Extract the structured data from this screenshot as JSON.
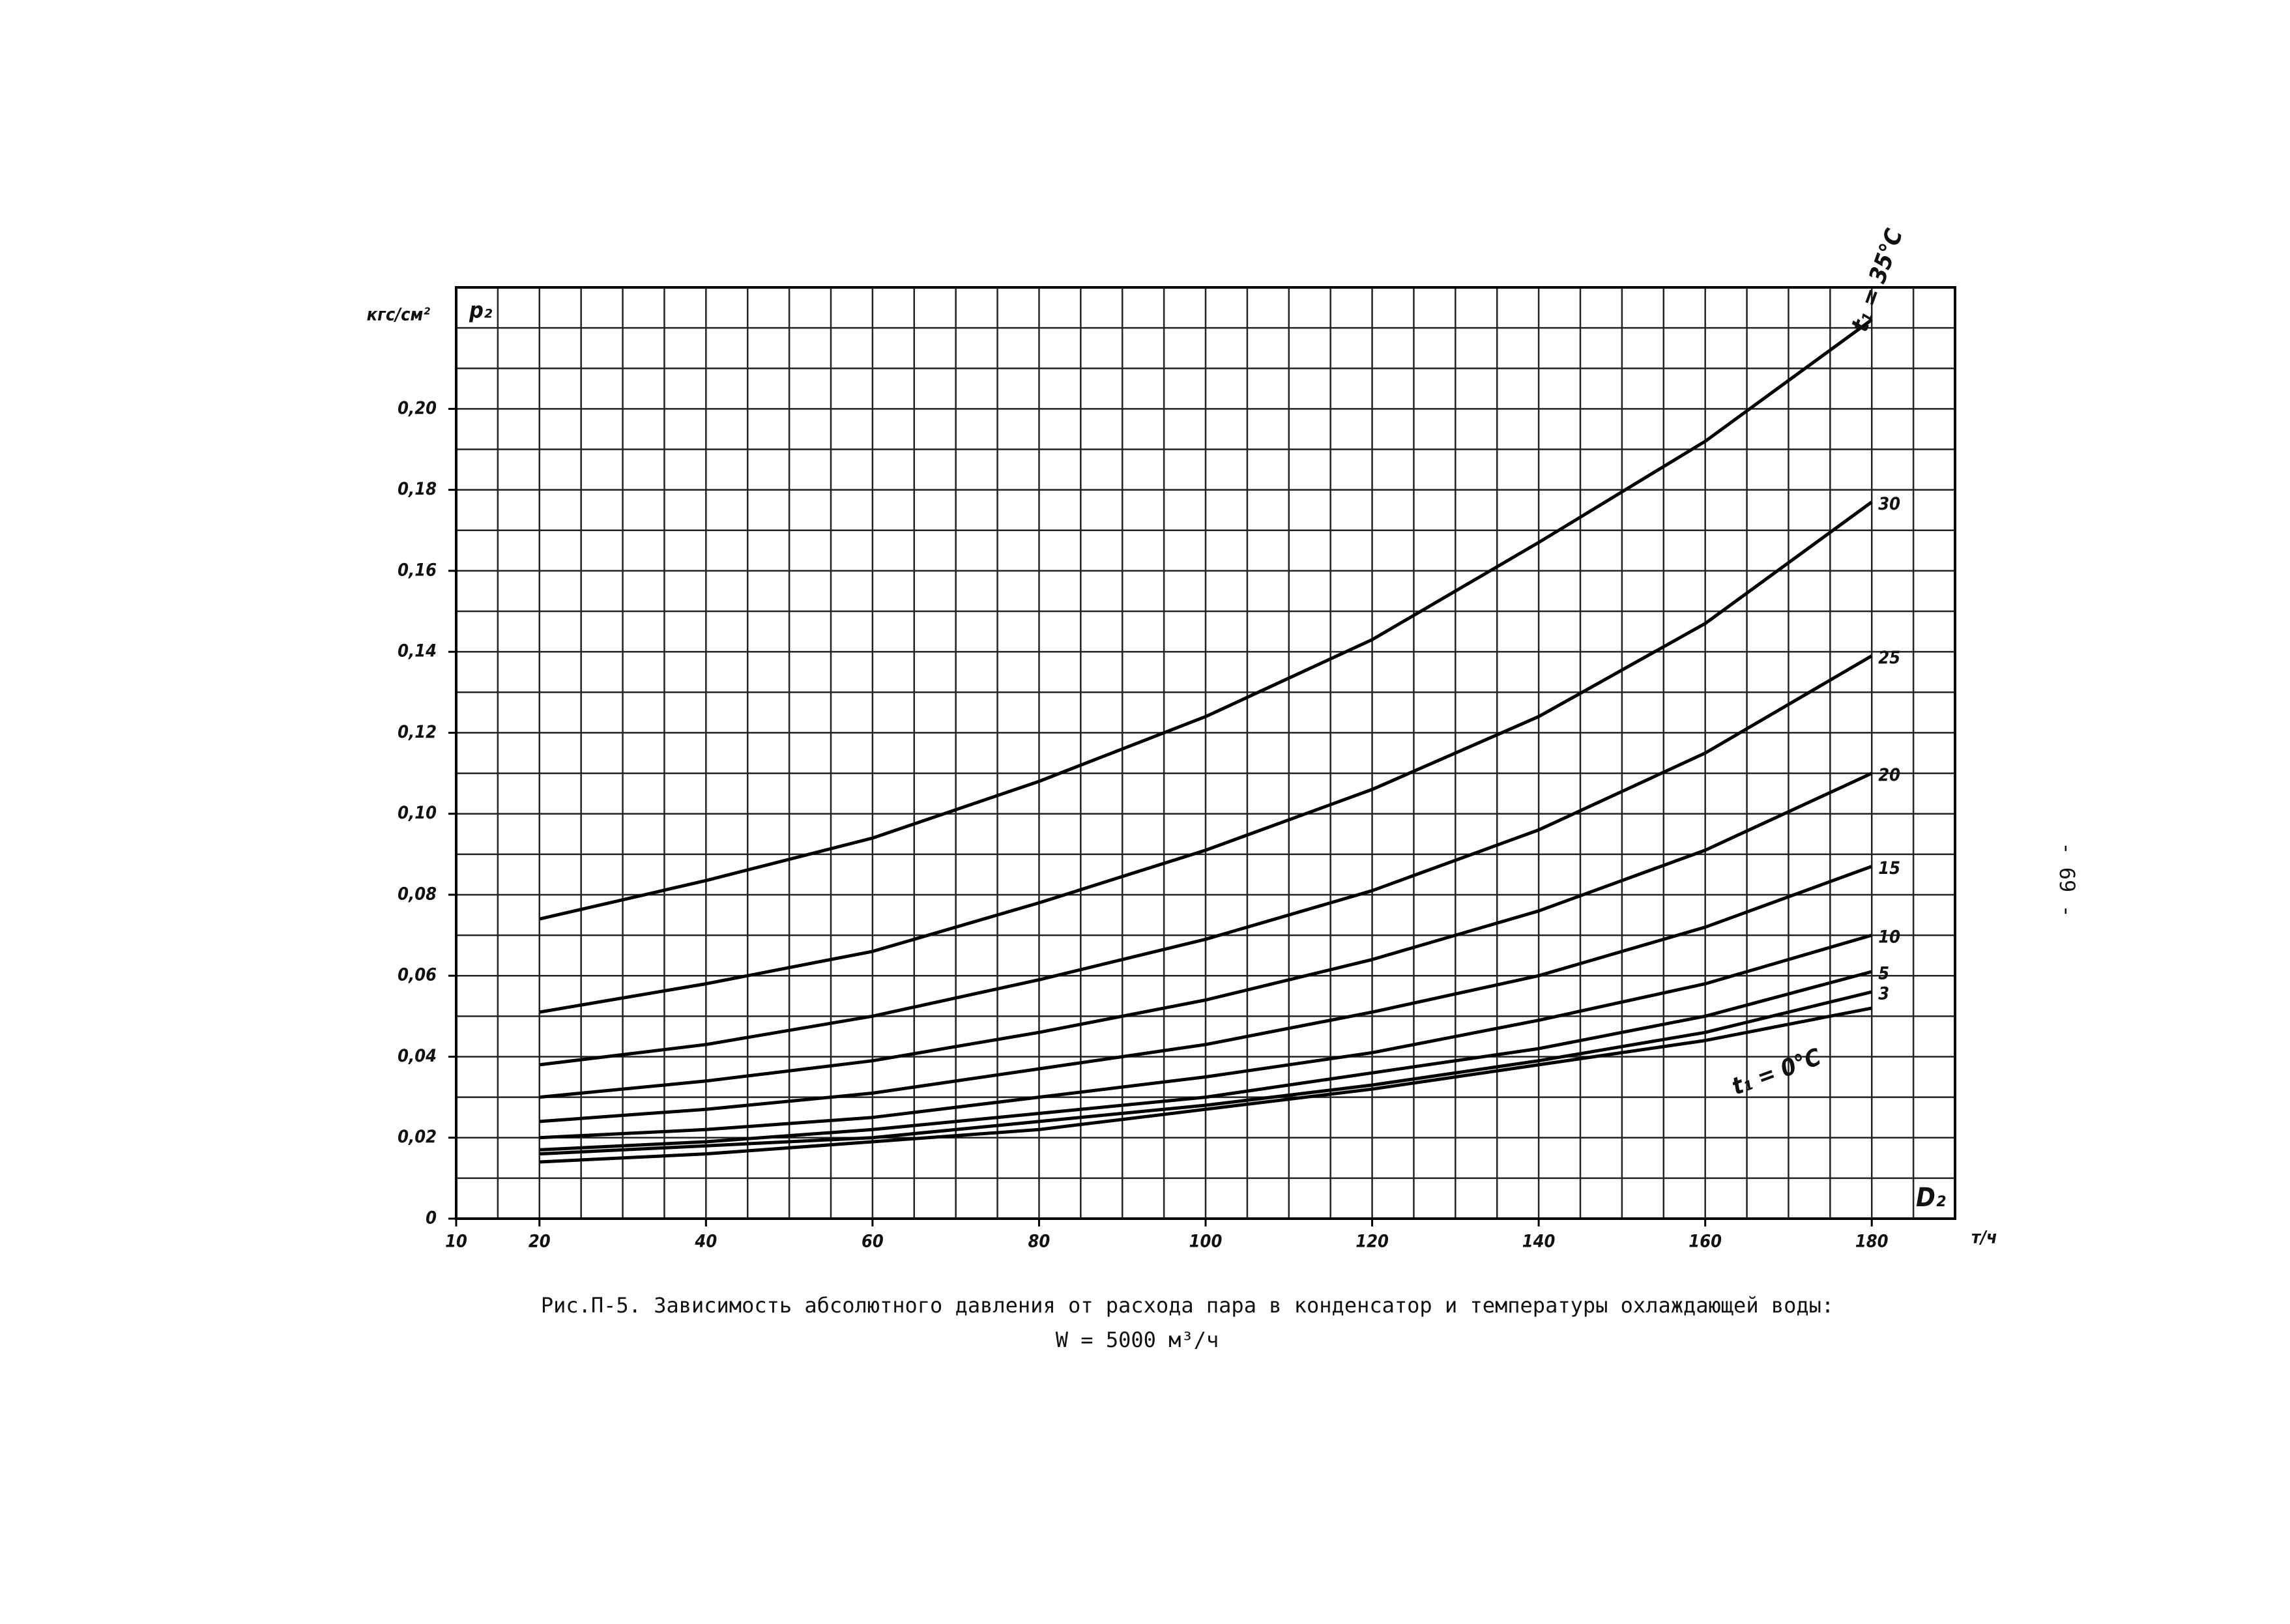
{
  "page_number": "- 69 -",
  "chart_data": {
    "type": "line",
    "title": "Рис.П-5. Зависимость абсолютного давления от расхода пара в конденсатор и температуры охлаждающей воды:",
    "subtitle": "W = 5000 м³/ч",
    "y_unit": "кгс/см²",
    "y_label": "p₂",
    "x_label": "D₂",
    "x_unit": "т/ч",
    "xlim": [
      10,
      190
    ],
    "ylim": [
      0,
      0.23
    ],
    "xticks": [
      10,
      20,
      40,
      60,
      80,
      100,
      120,
      140,
      160,
      180
    ],
    "yticks": [
      0,
      {
        "value": 0.02,
        "label": "0,02"
      },
      {
        "value": 0.04,
        "label": "0,04"
      },
      {
        "value": 0.06,
        "label": "0,06"
      },
      {
        "value": 0.08,
        "label": "0,08"
      },
      {
        "value": 0.1,
        "label": "0,10"
      },
      {
        "value": 0.12,
        "label": "0,12"
      },
      {
        "value": 0.14,
        "label": "0,14"
      },
      {
        "value": 0.16,
        "label": "0,16"
      },
      {
        "value": 0.18,
        "label": "0,18"
      },
      {
        "value": 0.2,
        "label": "0,20"
      }
    ],
    "grid": true,
    "xgrid_step": 5,
    "ygrid_step": 0.01,
    "x": [
      20,
      40,
      60,
      80,
      100,
      120,
      140,
      160,
      180
    ],
    "series": [
      {
        "name": "t₁ = 35°C",
        "color": "#000000",
        "values": [
          0.074,
          0.0835,
          0.094,
          0.108,
          0.124,
          0.143,
          0.167,
          0.192,
          0.222
        ]
      },
      {
        "name": "30",
        "color": "#000000",
        "values": [
          0.051,
          0.058,
          0.066,
          0.078,
          0.091,
          0.106,
          0.124,
          0.147,
          0.177
        ]
      },
      {
        "name": "25",
        "color": "#000000",
        "values": [
          0.038,
          0.043,
          0.05,
          0.059,
          0.069,
          0.081,
          0.096,
          0.115,
          0.139
        ]
      },
      {
        "name": "20",
        "color": "#000000",
        "values": [
          0.03,
          0.034,
          0.039,
          0.046,
          0.054,
          0.064,
          0.076,
          0.091,
          0.11
        ]
      },
      {
        "name": "15",
        "color": "#000000",
        "values": [
          0.024,
          0.027,
          0.031,
          0.037,
          0.043,
          0.051,
          0.06,
          0.072,
          0.087
        ]
      },
      {
        "name": "10",
        "color": "#000000",
        "values": [
          0.02,
          0.022,
          0.025,
          0.03,
          0.035,
          0.041,
          0.049,
          0.058,
          0.07
        ]
      },
      {
        "name": "5",
        "color": "#000000",
        "values": [
          0.017,
          0.019,
          0.022,
          0.026,
          0.03,
          0.036,
          0.042,
          0.05,
          0.061
        ]
      },
      {
        "name": "3",
        "color": "#000000",
        "values": [
          0.016,
          0.018,
          0.02,
          0.024,
          0.028,
          0.033,
          0.039,
          0.046,
          0.056
        ]
      },
      {
        "name": "t₁ = 0°C",
        "color": "#000000",
        "values": [
          0.014,
          0.016,
          0.019,
          0.022,
          0.027,
          0.032,
          0.038,
          0.044,
          0.052
        ]
      }
    ]
  }
}
